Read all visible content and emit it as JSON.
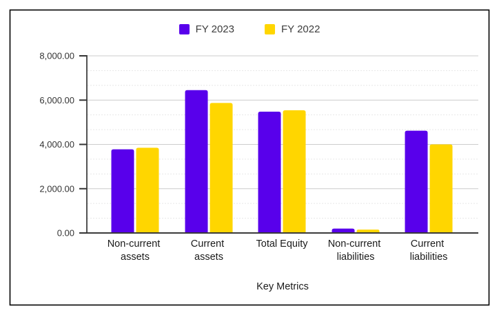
{
  "chart_data": {
    "type": "bar",
    "title": "",
    "xlabel": "Key Metrics",
    "ylabel": "",
    "categories": [
      "Non-current assets",
      "Current assets",
      "Total Equity",
      "Non-current liabilities",
      "Current liabilities"
    ],
    "category_lines": [
      [
        "Non-current",
        "assets"
      ],
      [
        "Current",
        "assets"
      ],
      [
        "Total Equity"
      ],
      [
        "Non-current",
        "liabilities"
      ],
      [
        "Current",
        "liabilities"
      ]
    ],
    "series": [
      {
        "name": "FY 2023",
        "color": "#5800EB",
        "values": [
          3780,
          6450,
          5480,
          200,
          4620
        ]
      },
      {
        "name": "FY 2022",
        "color": "#FFD600",
        "values": [
          3850,
          5870,
          5540,
          150,
          4000
        ]
      }
    ],
    "ylim": [
      0,
      8000
    ],
    "ytick_interval": 2000,
    "ytick_labels": [
      "0.00",
      "2,000.00",
      "4,000.00",
      "6,000.00",
      "8,000.00"
    ],
    "minor_gridlines_between_majors": 2,
    "grid": true,
    "legend_position": "top"
  },
  "styles": {
    "background": "#ffffff",
    "frame_border": "#000000",
    "axis_color": "#333333",
    "baseline_color": "#3a3a3a",
    "major_gridline": "#cccccc",
    "minor_gridline": "#e8e8e8",
    "legend_text": "#3c3c3c"
  }
}
